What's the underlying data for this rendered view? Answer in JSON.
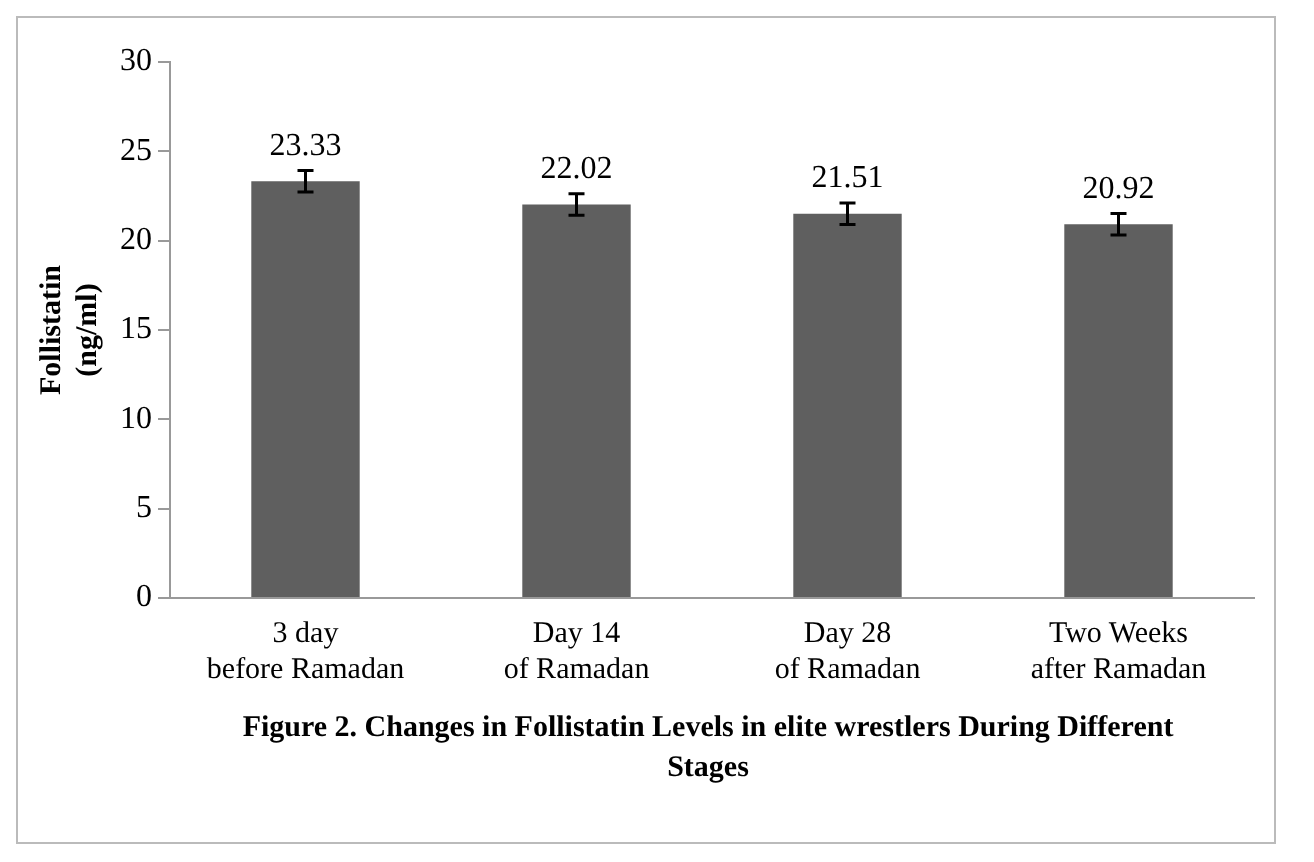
{
  "chart_data": {
    "type": "bar",
    "title": "Figure 2. Changes in Follistatin Levels in elite wrestlers During Different Stages",
    "ylabel": "Follistatin (ng/ml)",
    "categories": [
      "3 day before Ramadan",
      "Day 14 of Ramadan",
      "Day 28 of Ramadan",
      "Two Weeks after Ramadan"
    ],
    "values": [
      23.33,
      22.02,
      21.51,
      20.92
    ],
    "errors": [
      0.6,
      0.6,
      0.6,
      0.6
    ],
    "color": "#5f5f5f",
    "data_labels": true,
    "grid": false,
    "legend": false,
    "ylim": [
      0,
      30
    ],
    "yticks": [
      0,
      5,
      10,
      15,
      20,
      25,
      30
    ]
  }
}
